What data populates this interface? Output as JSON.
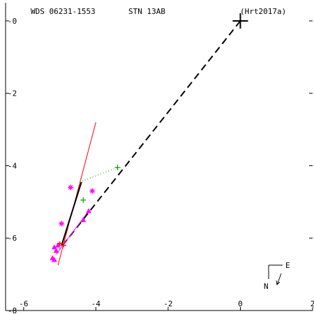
{
  "header": {
    "left": "WDS 06231-1553",
    "center": "STN  13AB",
    "right": "(Hrt2017a)"
  },
  "compass": {
    "east": "E",
    "north": "N"
  },
  "chart_data": {
    "type": "scatter",
    "title": "WDS 06231-1553",
    "xlabel": "",
    "ylabel": "",
    "xlim": [
      -6.5,
      2.0
    ],
    "ylim": [
      -8.0,
      0.5
    ],
    "x_ticks": [
      -6,
      -4,
      -2,
      0,
      2
    ],
    "y_ticks": [
      0,
      -2,
      -4,
      -6,
      -8
    ],
    "x_tick_labels": [
      "-6",
      "-4",
      "-2",
      "0",
      "2"
    ],
    "y_tick_labels": [
      "-0",
      "-2",
      "-4",
      "-6",
      "-8"
    ],
    "grid": false,
    "primary": {
      "x": 0.0,
      "y": 0.0,
      "marker": "large-plus",
      "color": "#000000"
    },
    "dashed_line": {
      "from": [
        0.0,
        0.0
      ],
      "to": [
        -5.0,
        -6.3
      ],
      "color": "#000000"
    },
    "red_line": {
      "from": [
        -5.05,
        -6.75
      ],
      "to": [
        -4.0,
        -2.8
      ],
      "color": "#ff0000"
    },
    "black_segment": {
      "from": [
        -4.95,
        -6.2
      ],
      "to": [
        -4.4,
        -4.45
      ],
      "color": "#000000"
    },
    "green_dotted": {
      "points": [
        [
          -4.45,
          -4.45
        ],
        [
          -3.4,
          -4.05
        ]
      ],
      "color": "#00a000"
    },
    "magenta_line": {
      "from": [
        -5.1,
        -6.45
      ],
      "to": [
        -4.2,
        -5.25
      ],
      "color": "#ff00ff"
    },
    "series": [
      {
        "marker": "star",
        "color": "#ff00ff",
        "x": [
          -4.7,
          -4.1,
          -4.95
        ],
        "y": [
          -4.6,
          -4.7,
          -5.6
        ]
      },
      {
        "marker": "plus",
        "color": "#00a000",
        "x": [
          -3.4,
          -4.35
        ],
        "y": [
          -4.05,
          -4.95
        ]
      },
      {
        "marker": "triangle",
        "color": "#ff00ff",
        "x": [
          -4.2,
          -4.35,
          -5.15,
          -5.1,
          -5.2,
          -5.15,
          -5.05
        ],
        "y": [
          -5.25,
          -5.5,
          -6.25,
          -6.35,
          -6.55,
          -6.6,
          -6.2
        ]
      },
      {
        "marker": "cross",
        "color": "#ff0000",
        "x": [
          -5.0,
          -4.9
        ],
        "y": [
          -6.15,
          -6.2
        ]
      }
    ]
  }
}
